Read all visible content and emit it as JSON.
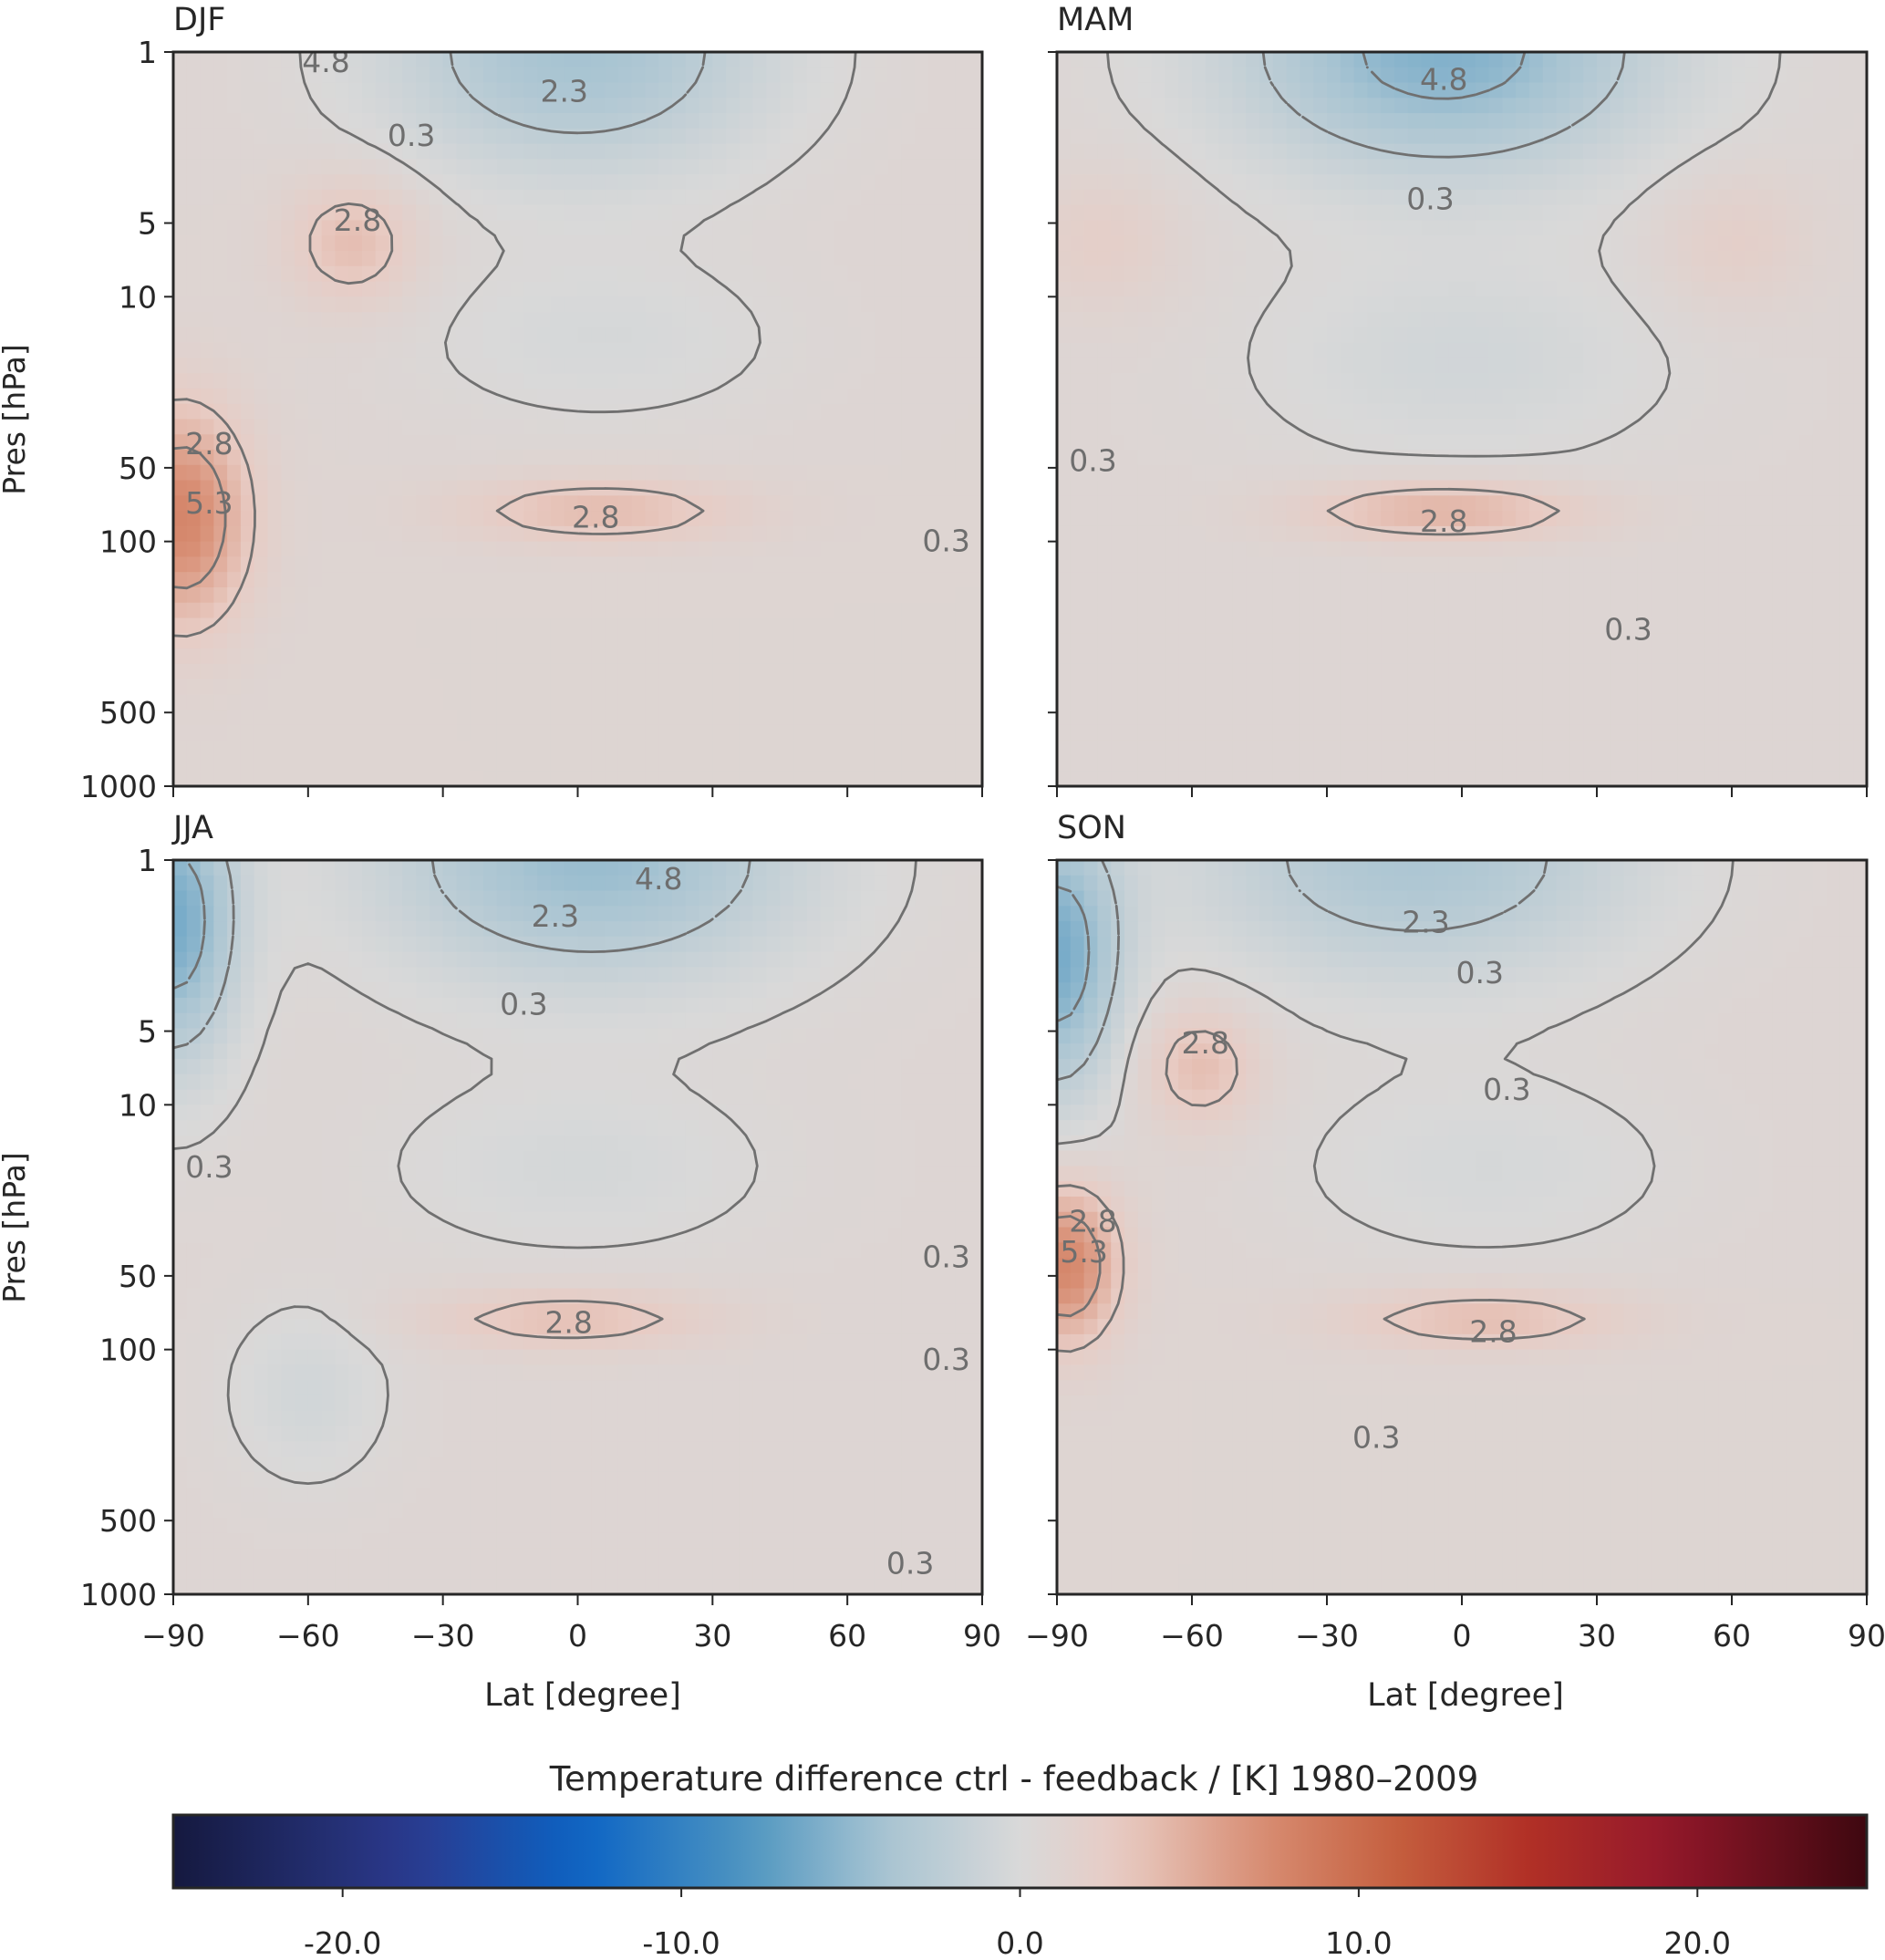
{
  "figure": {
    "panels": [
      {
        "title": "DJF",
        "ylabel": "Pres [hPa]",
        "xlabel": ""
      },
      {
        "title": "MAM",
        "ylabel": "",
        "xlabel": ""
      },
      {
        "title": "JJA",
        "ylabel": "Pres [hPa]",
        "xlabel": "Lat [degree]"
      },
      {
        "title": "SON",
        "ylabel": "",
        "xlabel": "Lat [degree]"
      }
    ],
    "colorbar": {
      "label": "Temperature difference ctrl - feedback / [K]  1980–2009",
      "ticks": [
        "-20.0",
        "-10.0",
        "0.0",
        "10.0",
        "20.0"
      ],
      "range": [
        -25,
        25
      ]
    }
  },
  "chart_data": {
    "type": "heatmap",
    "description_free": true,
    "x_axis": {
      "label": "Lat [degree]",
      "ticks": [
        -90,
        -60,
        -30,
        0,
        30,
        60,
        90
      ],
      "tick_labels": [
        "−90",
        "−60",
        "−30",
        "0",
        "30",
        "60",
        "90"
      ],
      "range": [
        -90,
        90
      ]
    },
    "y_axis": {
      "label": "Pres [hPa]",
      "scale": "log",
      "inverted": true,
      "ticks": [
        1,
        5,
        10,
        50,
        100,
        500,
        1000
      ],
      "tick_labels": [
        "1",
        "5",
        "10",
        "50",
        "100",
        "500",
        "1000"
      ],
      "range": [
        1,
        1000
      ]
    },
    "colormap_stops": [
      {
        "v": -25,
        "color": "#15193f"
      },
      {
        "v": -18,
        "color": "#2b3a8e"
      },
      {
        "v": -13,
        "color": "#0b63c4"
      },
      {
        "v": -8,
        "color": "#4f96c0"
      },
      {
        "v": -4,
        "color": "#a8c4d2"
      },
      {
        "v": 0,
        "color": "#d9d9d9"
      },
      {
        "v": 3,
        "color": "#e8cbc3"
      },
      {
        "v": 7,
        "color": "#d88f75"
      },
      {
        "v": 11,
        "color": "#c5603f"
      },
      {
        "v": 15,
        "color": "#b13026"
      },
      {
        "v": 19,
        "color": "#94182a"
      },
      {
        "v": 25,
        "color": "#3e0810"
      }
    ],
    "contour_levels": [
      -4.8,
      -2.3,
      0.3,
      2.8,
      5.3
    ],
    "panels": [
      {
        "name": "DJF",
        "features": [
          {
            "lat": 0,
            "p": 1,
            "amp": -5,
            "slat": 30,
            "sp": 0.35
          },
          {
            "lat": -50,
            "p": 6,
            "amp": 3.2,
            "slat": 10,
            "sp": 0.18
          },
          {
            "lat": -88,
            "p": 80,
            "amp": 7,
            "slat": 10,
            "sp": 0.3
          },
          {
            "lat": 5,
            "p": 75,
            "amp": 3.3,
            "slat": 22,
            "sp": 0.09
          },
          {
            "lat": 5,
            "p": 15,
            "amp": -1.2,
            "slat": 30,
            "sp": 0.25
          }
        ],
        "bias": 0.9,
        "labels": [
          {
            "text": "4.8",
            "lat": -56,
            "p": 1.1
          },
          {
            "text": "2.3",
            "lat": -3,
            "p": 1.45
          },
          {
            "text": "0.3",
            "lat": -37,
            "p": 2.2
          },
          {
            "text": "2.8",
            "lat": -49,
            "p": 4.9
          },
          {
            "text": "2.8",
            "lat": -82,
            "p": 40
          },
          {
            "text": "5.3",
            "lat": -82,
            "p": 70
          },
          {
            "text": "2.8",
            "lat": 4,
            "p": 80
          },
          {
            "text": "0.3",
            "lat": 82,
            "p": 100
          }
        ]
      },
      {
        "name": "MAM",
        "features": [
          {
            "lat": -4,
            "p": 1,
            "amp": -6.5,
            "slat": 33,
            "sp": 0.35
          },
          {
            "lat": -4,
            "p": 75,
            "amp": 4.2,
            "slat": 22,
            "sp": 0.08
          },
          {
            "lat": 0,
            "p": 18,
            "amp": -1.5,
            "slat": 32,
            "sp": 0.3
          },
          {
            "lat": -80,
            "p": 6,
            "amp": 1.5,
            "slat": 12,
            "sp": 0.2
          },
          {
            "lat": 60,
            "p": 6,
            "amp": 1.5,
            "slat": 12,
            "sp": 0.2
          }
        ],
        "bias": 0.8,
        "labels": [
          {
            "text": "4.8",
            "lat": -4,
            "p": 1.3
          },
          {
            "text": "0.3",
            "lat": -7,
            "p": 4
          },
          {
            "text": "0.3",
            "lat": -82,
            "p": 47
          },
          {
            "text": "2.8",
            "lat": -4,
            "p": 83
          },
          {
            "text": "0.3",
            "lat": 37,
            "p": 230
          }
        ]
      },
      {
        "name": "JJA",
        "features": [
          {
            "lat": 3,
            "p": 1,
            "amp": -5.5,
            "slat": 33,
            "sp": 0.35
          },
          {
            "lat": -90,
            "p": 1.8,
            "amp": -7,
            "slat": 10,
            "sp": 0.4
          },
          {
            "lat": -2,
            "p": 75,
            "amp": 3.2,
            "slat": 22,
            "sp": 0.08
          },
          {
            "lat": 0,
            "p": 18,
            "amp": -1.2,
            "slat": 30,
            "sp": 0.25
          },
          {
            "lat": -60,
            "p": 150,
            "amp": -1.5,
            "slat": 12,
            "sp": 0.25
          }
        ],
        "bias": 0.8,
        "labels": [
          {
            "text": "4.8",
            "lat": 18,
            "p": 1.2
          },
          {
            "text": "2.3",
            "lat": -5,
            "p": 1.7
          },
          {
            "text": "0.3",
            "lat": -12,
            "p": 3.9
          },
          {
            "text": "0.3",
            "lat": -82,
            "p": 18
          },
          {
            "text": "2.8",
            "lat": -2,
            "p": 78
          },
          {
            "text": "0.3",
            "lat": 82,
            "p": 42
          },
          {
            "text": "0.3",
            "lat": 82,
            "p": 110
          },
          {
            "text": "0.3",
            "lat": 74,
            "p": 750
          }
        ]
      },
      {
        "name": "SON",
        "features": [
          {
            "lat": -10,
            "p": 1,
            "amp": -4.5,
            "slat": 35,
            "sp": 0.35
          },
          {
            "lat": -90,
            "p": 2.5,
            "amp": -7,
            "slat": 10,
            "sp": 0.4
          },
          {
            "lat": -58,
            "p": 7,
            "amp": 3.2,
            "slat": 9,
            "sp": 0.17
          },
          {
            "lat": -88,
            "p": 45,
            "amp": 7,
            "slat": 8,
            "sp": 0.22
          },
          {
            "lat": 5,
            "p": 75,
            "amp": 3.3,
            "slat": 22,
            "sp": 0.08
          },
          {
            "lat": 5,
            "p": 18,
            "amp": -1.2,
            "slat": 32,
            "sp": 0.28
          }
        ],
        "bias": 0.9,
        "labels": [
          {
            "text": "2.3",
            "lat": -8,
            "p": 1.8
          },
          {
            "text": "0.3",
            "lat": 4,
            "p": 2.9
          },
          {
            "text": "2.8",
            "lat": -57,
            "p": 5.6
          },
          {
            "text": "0.3",
            "lat": 10,
            "p": 8.7
          },
          {
            "text": "2.8",
            "lat": -82,
            "p": 30
          },
          {
            "text": "5.3",
            "lat": -84,
            "p": 40
          },
          {
            "text": "2.8",
            "lat": 7,
            "p": 85
          },
          {
            "text": "0.3",
            "lat": -19,
            "p": 230
          }
        ]
      }
    ]
  }
}
